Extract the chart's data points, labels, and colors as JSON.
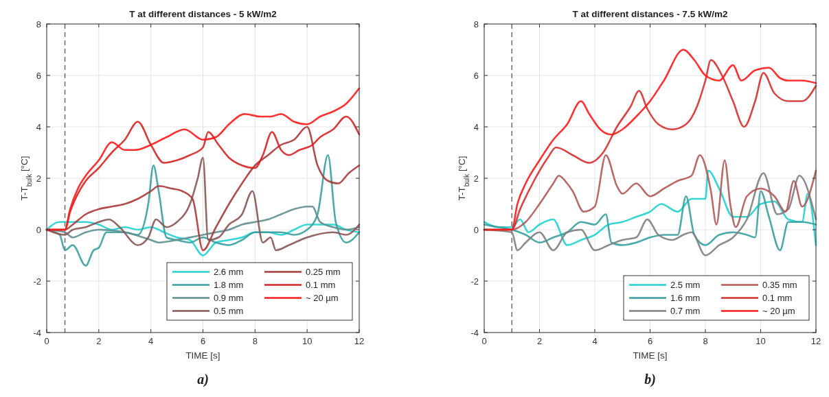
{
  "chart_data": [
    {
      "type": "line",
      "title": "T at different distances - 5 kW/m2",
      "xlabel": "TIME [s]",
      "ylabel": "T-T$_{bulk}$ [°C]",
      "annotations": [
        "a)"
      ],
      "xlim": [
        0,
        12
      ],
      "ylim": [
        -4,
        8
      ],
      "xticks": [
        0,
        2,
        4,
        6,
        8,
        10,
        12
      ],
      "yticks": [
        -4,
        -2,
        0,
        2,
        4,
        6,
        8
      ],
      "grid": true,
      "legend": "bottom right",
      "ref_lines": [
        {
          "axis": "x",
          "value": 0.7,
          "label": null,
          "color": "#707070",
          "line_style": "dashed"
        }
      ],
      "series": [
        {
          "name": "2.6 mm",
          "color": "#22d0d0",
          "x": [
            0,
            0.5,
            1,
            1.5,
            2,
            2.5,
            3,
            3.5,
            4,
            4.5,
            5,
            5.5,
            6,
            6.5,
            7,
            7.5,
            8,
            8.5,
            9,
            9.5,
            10,
            10.5,
            11,
            11.5,
            12
          ],
          "values": [
            0,
            0.3,
            0.3,
            0.3,
            0.2,
            0,
            0.1,
            0,
            0.1,
            -0.1,
            -0.3,
            -0.4,
            -1,
            -0.5,
            -0.4,
            -0.3,
            -0.1,
            -0.1,
            -0.2,
            0,
            0.2,
            0.2,
            0.2,
            0,
            -0.1
          ]
        },
        {
          "name": "1.8 mm",
          "color": "#3a9e9e",
          "x": [
            0,
            0.5,
            0.7,
            1,
            1.5,
            1.8,
            2,
            2.3,
            3,
            3.5,
            3.9,
            4.1,
            4.3,
            4.6,
            5,
            5.5,
            6,
            6.5,
            7,
            7.5,
            8,
            8.5,
            9,
            9.5,
            10,
            10.4,
            10.8,
            11.1,
            11.5,
            12
          ],
          "values": [
            0,
            -0.2,
            -0.8,
            -0.6,
            -1.4,
            -0.8,
            -0.7,
            -0.1,
            -0.1,
            -0.2,
            1,
            2.5,
            1.5,
            -0.3,
            -0.4,
            -0.5,
            -0.3,
            -0.5,
            -0.6,
            -0.4,
            -0.1,
            -0.1,
            -0.1,
            -0.2,
            0,
            0.6,
            2.9,
            0.3,
            -0.5,
            -0.1
          ]
        },
        {
          "name": "0.9 mm",
          "color": "#5f8f8f",
          "x": [
            0,
            0.7,
            1,
            1.5,
            2,
            3,
            4,
            4.3,
            5,
            6,
            6.5,
            7,
            7.5,
            8,
            8.5,
            9,
            9.5,
            10,
            10.2,
            10.5,
            11,
            11.5,
            12
          ],
          "values": [
            0,
            -0.1,
            -0.3,
            -0.1,
            0,
            -0.1,
            -0.4,
            -0.5,
            -0.4,
            -0.2,
            -0.1,
            0,
            0.2,
            0.3,
            0.4,
            0.6,
            0.8,
            0.9,
            0.9,
            0.3,
            0.1,
            0,
            0.1
          ]
        },
        {
          "name": "0.5 mm",
          "color": "#8a5555",
          "x": [
            0,
            0.7,
            1,
            1.5,
            2,
            2.4,
            2.8,
            3.5,
            3.9,
            4.2,
            4.6,
            5,
            5.5,
            5.8,
            6,
            6.2,
            6.6,
            7,
            7.5,
            7.9,
            8.3,
            8.6,
            8.8,
            9.3,
            10,
            11,
            11.5,
            12
          ],
          "values": [
            0,
            -0.2,
            0,
            0.1,
            0.3,
            0.4,
            0.1,
            -0.6,
            -0.3,
            0.4,
            0.1,
            0.3,
            1,
            2,
            2.8,
            -0.4,
            -0.3,
            0.2,
            0.6,
            1.5,
            -0.5,
            -0.3,
            -0.8,
            -0.6,
            -0.3,
            -0.1,
            -0.2,
            0.2
          ]
        },
        {
          "name": "0.25 mm",
          "color": "#a83a3a",
          "x": [
            0,
            0.7,
            1,
            1.5,
            2,
            2.5,
            3,
            3.5,
            4,
            4.3,
            4.8,
            5.2,
            5.6,
            6,
            6.5,
            7,
            7.5,
            8,
            8.5,
            9,
            9.5,
            10,
            10.4,
            10.8,
            11.2,
            11.6,
            12
          ],
          "values": [
            0,
            0,
            0.2,
            0.6,
            0.8,
            0.9,
            1,
            1.2,
            1.5,
            1.7,
            1.6,
            1.5,
            1.2,
            -0.8,
            0.1,
            1,
            1.8,
            2.5,
            2.9,
            3.3,
            3.5,
            4,
            2.5,
            1.9,
            1.8,
            2.2,
            2.5
          ]
        },
        {
          "name": "0.1 mm",
          "color": "#d42424",
          "x": [
            0,
            0.7,
            0.9,
            1.2,
            1.5,
            2,
            2.5,
            3,
            3.5,
            4,
            4.5,
            5,
            5.5,
            6,
            6.2,
            6.6,
            7,
            7.5,
            8,
            8.3,
            8.65,
            9,
            9.3,
            9.7,
            10.2,
            10.5,
            11,
            11.5,
            12
          ],
          "values": [
            0,
            0,
            0.7,
            1.4,
            1.9,
            2.4,
            3,
            3.5,
            4.2,
            3.3,
            2.6,
            2.7,
            2.9,
            3.2,
            3.8,
            3.3,
            2.8,
            2.5,
            2.4,
            2.9,
            3.8,
            3.1,
            2.9,
            3.1,
            3.3,
            3.6,
            3.9,
            4.4,
            3.7
          ]
        },
        {
          "name": "~ 20 µm",
          "color": "#ff1a1a",
          "x": [
            0,
            0.7,
            0.9,
            1.2,
            1.5,
            2,
            2.5,
            3,
            3.4,
            4,
            4.6,
            5.3,
            6,
            6.5,
            7,
            7.6,
            8.2,
            8.6,
            9,
            9.5,
            10,
            10.5,
            11,
            11.5,
            12
          ],
          "values": [
            0,
            0,
            0.8,
            1.6,
            2.1,
            2.7,
            3.4,
            3.1,
            3.1,
            3.3,
            3.6,
            3.9,
            3.5,
            3.6,
            4.1,
            4.5,
            4.4,
            4.4,
            4.5,
            4.2,
            4.1,
            4.4,
            4.6,
            4.9,
            5.5
          ]
        }
      ]
    },
    {
      "type": "line",
      "title": "T at different distances - 7.5 kW/m2",
      "xlabel": "TIME [s]",
      "ylabel": "T-T$_{bulk}$ [°C]",
      "annotations": [
        "b)"
      ],
      "xlim": [
        0,
        12
      ],
      "ylim": [
        -4,
        8
      ],
      "xticks": [
        0,
        2,
        4,
        6,
        8,
        10,
        12
      ],
      "yticks": [
        -4,
        -2,
        0,
        2,
        4,
        6,
        8
      ],
      "grid": true,
      "legend": "bottom right",
      "ref_lines": [
        {
          "axis": "x",
          "value": 1,
          "label": null,
          "color": "#707070",
          "line_style": "dashed"
        }
      ],
      "series": [
        {
          "name": "2.5 mm",
          "color": "#22d0d0",
          "x": [
            0,
            0.5,
            1,
            1.3,
            1.6,
            2,
            2.5,
            3,
            3.5,
            4,
            4.5,
            5,
            5.5,
            6,
            6.4,
            7,
            7.5,
            8,
            8.1,
            8.5,
            9,
            9.5,
            10,
            10.5,
            11,
            11.5,
            11.7,
            12
          ],
          "values": [
            0.3,
            0.1,
            0.1,
            0.4,
            -0.1,
            0.2,
            0.4,
            -0.6,
            -0.4,
            -0.2,
            0.2,
            0.3,
            0.5,
            0.7,
            1,
            0.7,
            1.2,
            1.2,
            2.3,
            1.6,
            0.5,
            0.5,
            1,
            1.1,
            0.4,
            0.3,
            1.4,
            -0.6
          ]
        },
        {
          "name": "1.6 mm",
          "color": "#3a9e9e",
          "x": [
            0,
            0.5,
            1,
            1.5,
            2,
            2.5,
            3,
            3.5,
            4,
            4.4,
            4.6,
            5,
            5.5,
            6,
            6.5,
            7,
            7.3,
            7.6,
            8,
            8.5,
            9,
            9.5,
            9.8,
            10,
            10.3,
            10.7,
            11,
            11.5,
            12
          ],
          "values": [
            0.2,
            0.1,
            0,
            -0.2,
            -0.5,
            -0.3,
            -0.1,
            0.3,
            0.2,
            0.6,
            -0.5,
            -0.6,
            -0.5,
            -0.3,
            -0.2,
            -0.2,
            1.3,
            -0.2,
            -0.6,
            -0.2,
            -0.1,
            -0.2,
            -0.3,
            1.5,
            0.5,
            -0.8,
            0.3,
            0.3,
            0.2
          ]
        },
        {
          "name": "0.7 mm",
          "color": "#808080",
          "x": [
            0,
            1,
            1.2,
            1.5,
            2,
            2.5,
            3,
            3.5,
            4,
            4.5,
            5,
            5.5,
            5.9,
            6.3,
            6.8,
            7.2,
            7.5,
            8,
            8.5,
            9,
            9.5,
            10.1,
            10.6,
            11,
            11.4,
            12
          ],
          "values": [
            0,
            -0.1,
            -0.8,
            -0.5,
            -0.1,
            -0.8,
            -0.1,
            0,
            -0.8,
            -0.6,
            -0.4,
            -0.3,
            0.4,
            -0.2,
            -0.4,
            -0.2,
            -0.1,
            -1,
            -0.6,
            -0.3,
            0.4,
            2.2,
            0.6,
            0.8,
            2.1,
            0.4
          ]
        },
        {
          "name": "0.35 mm",
          "color": "#b05a5a",
          "x": [
            0,
            1,
            1.5,
            2,
            2.5,
            2.7,
            3,
            3.2,
            3.6,
            4,
            4.4,
            4.8,
            5,
            5.5,
            6,
            6.5,
            7,
            7.5,
            7.8,
            8.2,
            8.4,
            8.7,
            8.9,
            9.1,
            9.5,
            10,
            10.5,
            10.9,
            11.2,
            11.5,
            12
          ],
          "values": [
            0,
            0,
            0.3,
            1,
            1.8,
            2.1,
            1.8,
            1.5,
            0.7,
            0.9,
            2.9,
            1.7,
            1.4,
            1.8,
            1.3,
            1.6,
            1.9,
            2.1,
            2.9,
            1.5,
            0.2,
            2.7,
            1,
            0.1,
            1.3,
            1.6,
            1.3,
            0.7,
            1.9,
            0.9,
            2.3
          ]
        },
        {
          "name": "0.1 mm",
          "color": "#d43030",
          "x": [
            0,
            1,
            1.3,
            1.8,
            2.3,
            2.6,
            3.2,
            3.8,
            4.3,
            4.8,
            5.3,
            5.6,
            5.9,
            6.3,
            6.8,
            7.3,
            7.7,
            8,
            8.2,
            8.6,
            9,
            9.4,
            9.8,
            10.1,
            10.5,
            11,
            11.5,
            12
          ],
          "values": [
            0,
            0,
            0.8,
            1.9,
            2.8,
            3.2,
            2.9,
            2.6,
            3,
            4,
            4.8,
            5.4,
            4.7,
            4.1,
            3.9,
            4.1,
            4.8,
            5.8,
            6.6,
            6,
            5,
            4,
            5,
            6.1,
            5.3,
            5,
            5,
            5.6
          ]
        },
        {
          "name": "~ 20 µm",
          "color": "#ff1a1a",
          "x": [
            0,
            1,
            1.2,
            1.5,
            2,
            2.5,
            3,
            3.5,
            3.8,
            4.2,
            4.6,
            5,
            5.5,
            6,
            6.5,
            7.2,
            7.6,
            8,
            8.5,
            9,
            9.3,
            9.8,
            10.3,
            10.7,
            11,
            11.5,
            12
          ],
          "values": [
            0,
            0,
            1,
            1.8,
            2.7,
            3.5,
            4.1,
            5,
            4.5,
            3.9,
            3.7,
            3.9,
            4.4,
            5,
            5.8,
            7,
            6.6,
            6,
            5.8,
            6.4,
            5.8,
            6.2,
            6.3,
            5.9,
            5.8,
            5.8,
            5.7
          ]
        }
      ]
    }
  ]
}
